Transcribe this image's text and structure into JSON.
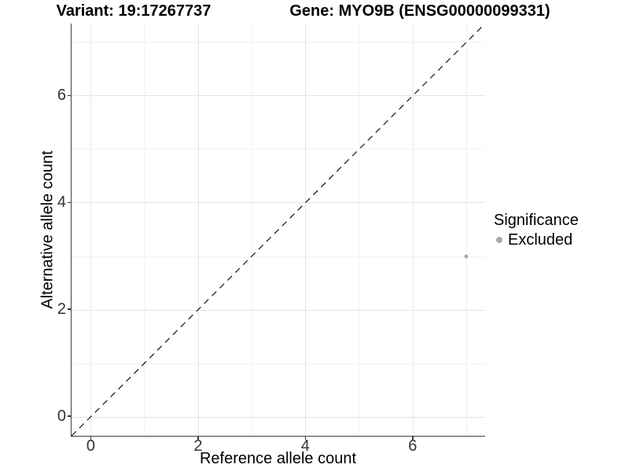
{
  "chart_data": {
    "type": "scatter",
    "title_left": "Variant: 19:17267737",
    "title_right": "Gene: MYO9B (ENSG00000099331)",
    "xlabel": "Reference allele count",
    "ylabel": "Alternative allele count",
    "xlim": [
      -0.35,
      7.35
    ],
    "ylim": [
      -0.35,
      7.35
    ],
    "x_major_ticks": [
      0,
      2,
      4,
      6
    ],
    "y_major_ticks": [
      0,
      2,
      4,
      6
    ],
    "x_minor_ticks": [
      1,
      3,
      5,
      7
    ],
    "y_minor_ticks": [
      1,
      3,
      5,
      7
    ],
    "grid": "major+minor",
    "series": [
      {
        "name": "Excluded",
        "color": "#a9a9a9",
        "marker": "circle",
        "points": [
          {
            "x": 7,
            "y": 3
          }
        ]
      }
    ],
    "reference_line": {
      "kind": "identity",
      "equation": "y = x",
      "style": "dashed",
      "color": "#000000"
    },
    "legend": {
      "position": "right",
      "title": "Significance",
      "items": [
        {
          "label": "Excluded",
          "color": "#a9a9a9"
        }
      ]
    },
    "colors": {
      "background": "#ffffff",
      "grid_major": "#e4e4e4",
      "grid_minor": "#f2f2f2",
      "axis_line": "#3f3f3f",
      "tick_mark": "#383838",
      "tick_label": "#333333",
      "title_text": "#000000"
    }
  }
}
